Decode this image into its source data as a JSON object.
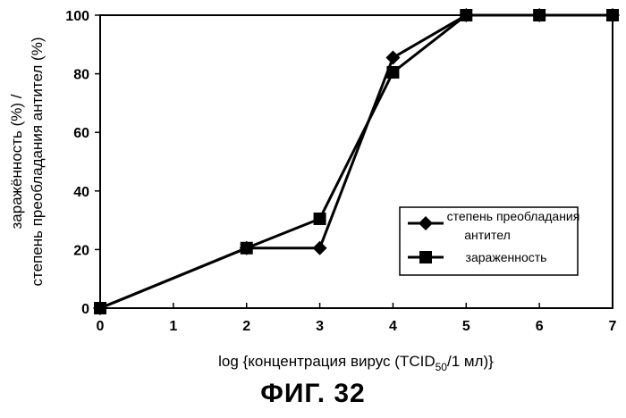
{
  "chart_data": {
    "type": "line",
    "x": [
      0,
      2,
      3,
      4,
      5,
      6,
      7
    ],
    "xlabel": {
      "main": "log {концентрация вирус (TCID",
      "sub": "50",
      "tail": "/1 мл)}"
    },
    "ylabel": [
      "заражённость (%) /",
      "степень преобладания антител (%)"
    ],
    "xlim": [
      0,
      7
    ],
    "ylim": [
      0,
      100
    ],
    "xticks": [
      0,
      1,
      2,
      3,
      4,
      5,
      6,
      7
    ],
    "yticks": [
      0,
      20,
      40,
      60,
      80,
      100
    ],
    "grid": false,
    "legend_position": "center-right",
    "series": [
      {
        "name": "степень преобладания антител",
        "marker": "diamond",
        "color": "#000000",
        "values": [
          0,
          20.5,
          20.5,
          85.5,
          100,
          100,
          100
        ]
      },
      {
        "name": "зараженность",
        "marker": "square",
        "color": "#000000",
        "values": [
          0,
          20.5,
          30.5,
          80.5,
          100,
          100,
          100
        ]
      }
    ],
    "legend_labels": [
      [
        "степень преобладания",
        "антител"
      ],
      [
        "зараженность"
      ]
    ]
  },
  "caption": "ФИГ. 32"
}
